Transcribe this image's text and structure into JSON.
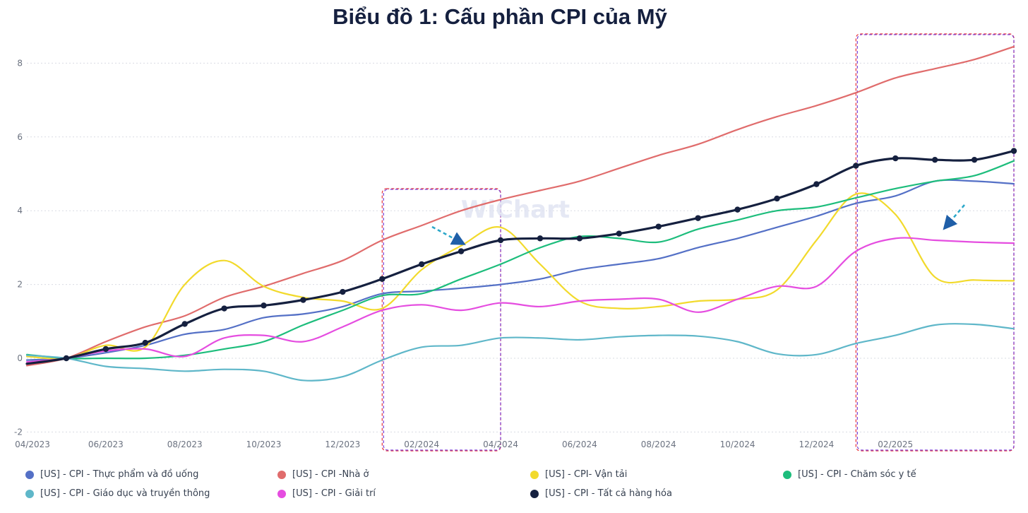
{
  "chart_data": {
    "type": "line",
    "title": "Biểu đồ 1: Cấu phần CPI của Mỹ",
    "watermark": "WiChart",
    "x_tick_labels": [
      "04/2023",
      "06/2023",
      "08/2023",
      "10/2023",
      "12/2023",
      "02/2024",
      "04/2024",
      "06/2024",
      "08/2024",
      "10/2024",
      "12/2024",
      "02/2025"
    ],
    "y_tick_labels": [
      "-2",
      "0",
      "2",
      "4",
      "6",
      "8"
    ],
    "ylim": [
      -2,
      8
    ],
    "xlim": [
      "2023-04",
      "2025-05"
    ],
    "grid": true,
    "legend_position": "bottom",
    "highlight_windows": [
      {
        "from": "2024-01",
        "to": "2024-04"
      },
      {
        "from": "2025-01",
        "to": "2025-05"
      }
    ],
    "series": [
      {
        "name": "[US] - CPI - Thực phẩm và đồ uống",
        "color": "#5470c6",
        "x": [
          "2023-04",
          "2023-05",
          "2023-06",
          "2023-07",
          "2023-08",
          "2023-09",
          "2023-10",
          "2023-11",
          "2023-12",
          "2024-01",
          "2024-02",
          "2024-03",
          "2024-04",
          "2024-05",
          "2024-06",
          "2024-07",
          "2024-08",
          "2024-09",
          "2024-10",
          "2024-11",
          "2024-12",
          "2025-01",
          "2025-02",
          "2025-03",
          "2025-04",
          "2025-05"
        ],
        "values": [
          -0.05,
          0,
          0.15,
          0.35,
          0.65,
          0.78,
          1.1,
          1.2,
          1.4,
          1.75,
          1.82,
          1.9,
          2.0,
          2.15,
          2.4,
          2.55,
          2.7,
          3.0,
          3.25,
          3.55,
          3.85,
          4.2,
          4.4,
          4.8,
          4.8,
          4.73
        ]
      },
      {
        "name": "[US] - CPI -Nhà ở",
        "color": "#e06c6c",
        "x": [
          "2023-04",
          "2023-05",
          "2023-06",
          "2023-07",
          "2023-08",
          "2023-09",
          "2023-10",
          "2023-11",
          "2023-12",
          "2024-01",
          "2024-02",
          "2024-03",
          "2024-04",
          "2024-05",
          "2024-06",
          "2024-07",
          "2024-08",
          "2024-09",
          "2024-10",
          "2024-11",
          "2024-12",
          "2025-01",
          "2025-02",
          "2025-03",
          "2025-04",
          "2025-05"
        ],
        "values": [
          -0.2,
          0,
          0.45,
          0.85,
          1.15,
          1.65,
          1.95,
          2.3,
          2.65,
          3.2,
          3.6,
          4.0,
          4.3,
          4.55,
          4.8,
          5.15,
          5.5,
          5.8,
          6.2,
          6.55,
          6.85,
          7.2,
          7.6,
          7.85,
          8.1,
          8.45
        ]
      },
      {
        "name": "[US] - CPI- Vận tải",
        "color": "#f2da2c",
        "x": [
          "2023-04",
          "2023-05",
          "2023-06",
          "2023-07",
          "2023-08",
          "2023-09",
          "2023-10",
          "2023-11",
          "2023-12",
          "2024-01",
          "2024-02",
          "2024-03",
          "2024-04",
          "2024-05",
          "2024-06",
          "2024-07",
          "2024-08",
          "2024-09",
          "2024-10",
          "2024-11",
          "2024-12",
          "2025-01",
          "2025-02",
          "2025-03",
          "2025-04",
          "2025-05"
        ],
        "values": [
          0.05,
          0,
          0.35,
          0.3,
          2.0,
          2.65,
          1.95,
          1.65,
          1.55,
          1.35,
          2.4,
          3.05,
          3.55,
          2.55,
          1.55,
          1.35,
          1.4,
          1.55,
          1.6,
          1.85,
          3.2,
          4.45,
          3.9,
          2.2,
          2.12,
          2.1
        ]
      },
      {
        "name": "[US] - CPI - Chăm sóc y tế",
        "color": "#1dbd7c",
        "x": [
          "2023-04",
          "2023-05",
          "2023-06",
          "2023-07",
          "2023-08",
          "2023-09",
          "2023-10",
          "2023-11",
          "2023-12",
          "2024-01",
          "2024-02",
          "2024-03",
          "2024-04",
          "2024-05",
          "2024-06",
          "2024-07",
          "2024-08",
          "2024-09",
          "2024-10",
          "2024-11",
          "2024-12",
          "2025-01",
          "2025-02",
          "2025-03",
          "2025-04",
          "2025-05"
        ],
        "values": [
          0.1,
          0,
          0,
          0,
          0.08,
          0.25,
          0.45,
          0.9,
          1.3,
          1.7,
          1.75,
          2.15,
          2.55,
          3.0,
          3.3,
          3.25,
          3.15,
          3.5,
          3.75,
          4.0,
          4.1,
          4.35,
          4.6,
          4.8,
          4.95,
          5.35
        ]
      },
      {
        "name": "[US] - CPI - Giáo dục và truyền thông",
        "color": "#5fb7c9",
        "x": [
          "2023-04",
          "2023-05",
          "2023-06",
          "2023-07",
          "2023-08",
          "2023-09",
          "2023-10",
          "2023-11",
          "2023-12",
          "2024-01",
          "2024-02",
          "2024-03",
          "2024-04",
          "2024-05",
          "2024-06",
          "2024-07",
          "2024-08",
          "2024-09",
          "2024-10",
          "2024-11",
          "2024-12",
          "2025-01",
          "2025-02",
          "2025-03",
          "2025-04",
          "2025-05"
        ],
        "values": [
          0.08,
          0,
          -0.22,
          -0.28,
          -0.35,
          -0.3,
          -0.35,
          -0.6,
          -0.5,
          -0.05,
          0.3,
          0.35,
          0.55,
          0.55,
          0.5,
          0.58,
          0.62,
          0.6,
          0.45,
          0.12,
          0.1,
          0.4,
          0.62,
          0.9,
          0.92,
          0.8
        ]
      },
      {
        "name": "[US] - CPI - Giải trí",
        "color": "#e54de0",
        "x": [
          "2023-04",
          "2023-05",
          "2023-06",
          "2023-07",
          "2023-08",
          "2023-09",
          "2023-10",
          "2023-11",
          "2023-12",
          "2024-01",
          "2024-02",
          "2024-03",
          "2024-04",
          "2024-05",
          "2024-06",
          "2024-07",
          "2024-08",
          "2024-09",
          "2024-10",
          "2024-11",
          "2024-12",
          "2025-01",
          "2025-02",
          "2025-03",
          "2025-04",
          "2025-05"
        ],
        "values": [
          -0.1,
          0,
          0.2,
          0.25,
          0.05,
          0.55,
          0.62,
          0.45,
          0.85,
          1.3,
          1.45,
          1.3,
          1.5,
          1.4,
          1.55,
          1.6,
          1.6,
          1.25,
          1.6,
          1.95,
          1.95,
          2.9,
          3.25,
          3.2,
          3.15,
          3.12
        ]
      },
      {
        "name": "[US] - CPI - Tất cả hàng hóa",
        "color": "#15203f",
        "x": [
          "2023-04",
          "2023-05",
          "2023-06",
          "2023-07",
          "2023-08",
          "2023-09",
          "2023-10",
          "2023-11",
          "2023-12",
          "2024-01",
          "2024-02",
          "2024-03",
          "2024-04",
          "2024-05",
          "2024-06",
          "2024-07",
          "2024-08",
          "2024-09",
          "2024-10",
          "2024-11",
          "2024-12",
          "2025-01",
          "2025-02",
          "2025-03",
          "2025-04",
          "2025-05"
        ],
        "values": [
          -0.15,
          0,
          0.25,
          0.42,
          0.93,
          1.35,
          1.43,
          1.58,
          1.8,
          2.15,
          2.55,
          2.9,
          3.2,
          3.25,
          3.25,
          3.38,
          3.57,
          3.8,
          4.03,
          4.33,
          4.72,
          5.22,
          5.42,
          5.38,
          5.38,
          5.62
        ]
      }
    ]
  }
}
